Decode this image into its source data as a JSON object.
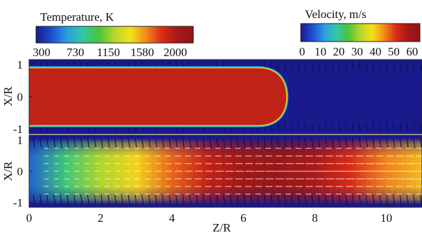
{
  "chart_data": [
    {
      "type": "heatmap",
      "name": "temperature-field",
      "title": "",
      "colorbar": {
        "label": "Temperature, K",
        "ticks": [
          300,
          730,
          1150,
          1580,
          2000
        ],
        "range": [
          300,
          2300
        ],
        "colormap": [
          "#1a1a8c",
          "#1f4fd1",
          "#2aa0e0",
          "#34c7a0",
          "#4cc43a",
          "#b8d62a",
          "#f2e21c",
          "#f28a1a",
          "#d92b16",
          "#a51818",
          "#8e1616"
        ]
      },
      "ylabel": "X/R",
      "yticks": [
        1,
        0,
        -1
      ],
      "ylim": [
        -1.15,
        1.15
      ],
      "xlim": [
        0,
        11
      ],
      "hot_core": {
        "value": 2000,
        "z_start": 0,
        "z_end": 7.2,
        "half_width": 0.88
      },
      "ambient": 300
    },
    {
      "type": "heatmap",
      "name": "velocity-field",
      "title": "",
      "colorbar": {
        "label": "Velocity, m/s",
        "ticks": [
          0,
          10,
          20,
          30,
          40,
          50,
          60
        ],
        "range": [
          0,
          65
        ],
        "colormap": [
          "#1a1a8c",
          "#1f4fd1",
          "#2aa0e0",
          "#34c7a0",
          "#4cc43a",
          "#b8d62a",
          "#f2e21c",
          "#f28a1a",
          "#d92b16",
          "#a51818",
          "#8e1616"
        ]
      },
      "xlabel": "Z/R",
      "ylabel": "X/R",
      "xticks": [
        0,
        2,
        4,
        6,
        8,
        10
      ],
      "yticks": [
        1,
        0,
        -1
      ],
      "ylim": [
        -1.15,
        1.15
      ],
      "xlim": [
        0,
        11
      ],
      "jet_profile": [
        {
          "z": 0,
          "v": 8
        },
        {
          "z": 1,
          "v": 22
        },
        {
          "z": 2,
          "v": 32
        },
        {
          "z": 3,
          "v": 40
        },
        {
          "z": 4,
          "v": 48
        },
        {
          "z": 5,
          "v": 55
        },
        {
          "z": 6,
          "v": 60
        },
        {
          "z": 7,
          "v": 62
        },
        {
          "z": 8,
          "v": 58
        },
        {
          "z": 9,
          "v": 52
        },
        {
          "z": 10,
          "v": 46
        },
        {
          "z": 11,
          "v": 42
        }
      ],
      "ambient": 0
    }
  ]
}
